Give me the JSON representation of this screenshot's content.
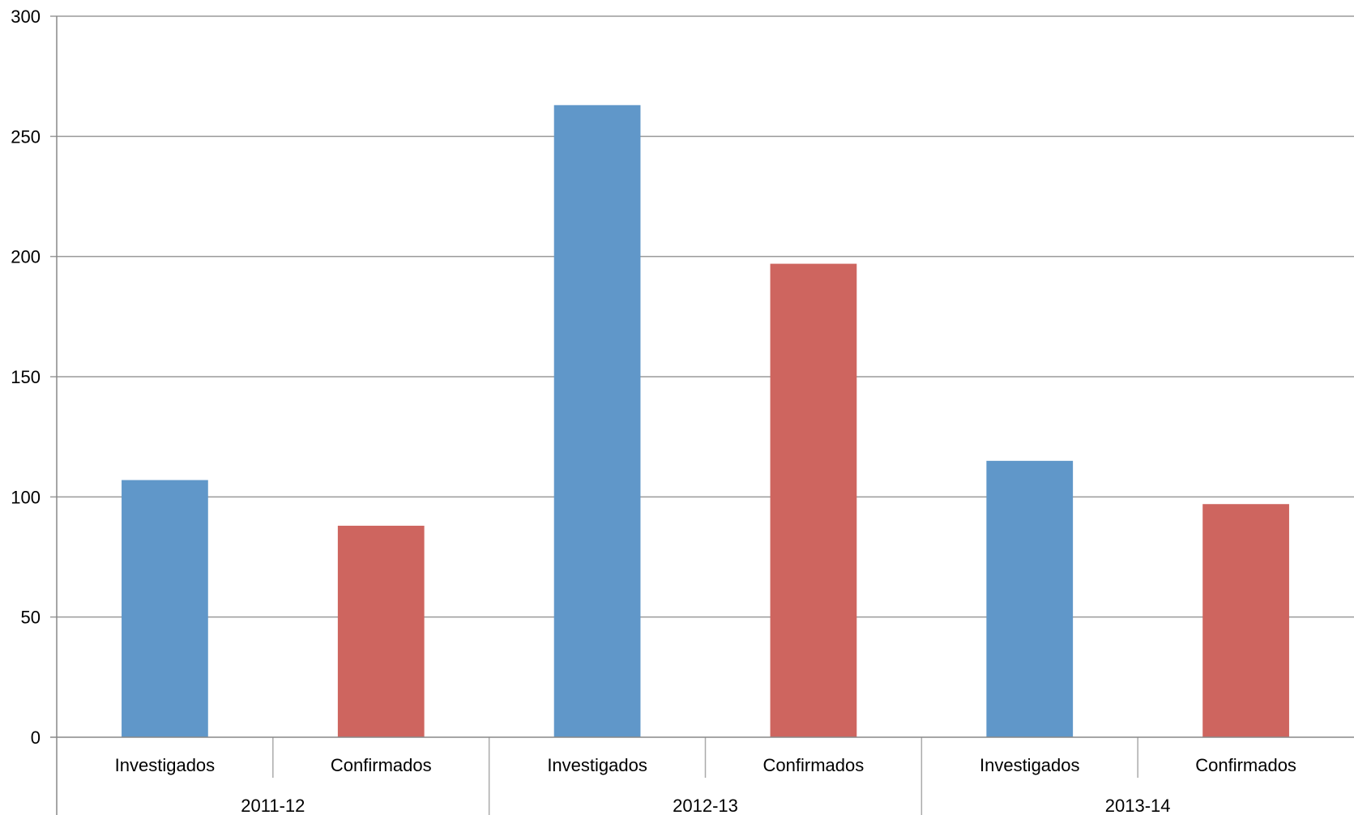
{
  "chart_data": {
    "type": "bar",
    "title": "",
    "xlabel": "",
    "ylabel": "",
    "ylim": [
      0,
      300
    ],
    "yticks": [
      0,
      50,
      100,
      150,
      200,
      250,
      300
    ],
    "grid": true,
    "legend": "none",
    "groups": [
      {
        "label": "2011-12",
        "bars": [
          {
            "label": "Investigados",
            "value": 107,
            "color": "#6097C9"
          },
          {
            "label": "Confirmados",
            "value": 88,
            "color": "#CE655F"
          }
        ]
      },
      {
        "label": "2012-13",
        "bars": [
          {
            "label": "Investigados",
            "value": 263,
            "color": "#6097C9"
          },
          {
            "label": "Confirmados",
            "value": 197,
            "color": "#CE655F"
          }
        ]
      },
      {
        "label": "2013-14",
        "bars": [
          {
            "label": "Investigados",
            "value": 115,
            "color": "#6097C9"
          },
          {
            "label": "Confirmados",
            "value": 97,
            "color": "#CE655F"
          }
        ]
      }
    ]
  }
}
